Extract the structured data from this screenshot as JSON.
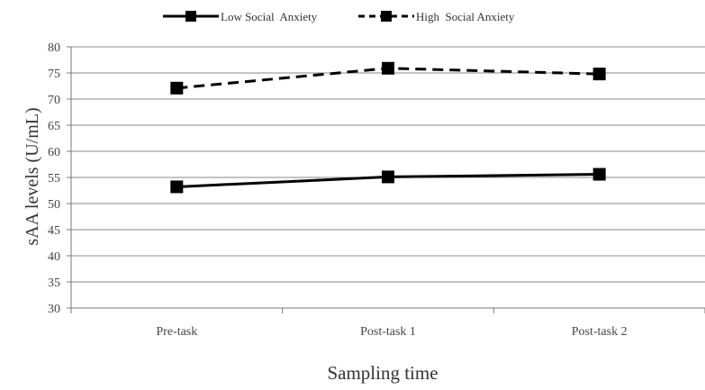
{
  "chart_data": {
    "type": "line",
    "xlabel": "Sampling time",
    "ylabel": "sAA levels (U/mL)",
    "categories": [
      "Pre-task",
      "Post-task 1",
      "Post-task 2"
    ],
    "ylim": [
      30,
      80
    ],
    "yticks": [
      30,
      35,
      40,
      45,
      50,
      55,
      60,
      65,
      70,
      75,
      80
    ],
    "grid": "horizontal",
    "legend_position": "top",
    "series": [
      {
        "name": "Low Social  Anxiety",
        "values": [
          53.2,
          55.1,
          55.6
        ],
        "line_style": "solid",
        "marker": "square",
        "color": "#000000"
      },
      {
        "name": "High  Social Anxiety",
        "values": [
          72.1,
          75.9,
          74.8
        ],
        "line_style": "dashed",
        "marker": "square",
        "color": "#000000"
      }
    ]
  }
}
